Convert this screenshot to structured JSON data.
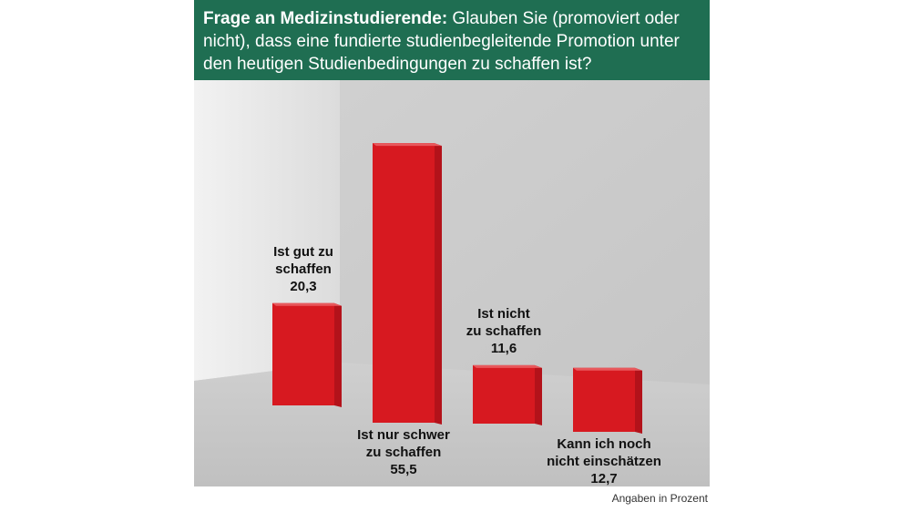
{
  "header": {
    "bold": "Frage an Medizinstudierende:",
    "text": " Glauben Sie (promoviert oder nicht), dass eine fundierte studienbegleitende Promotion unter den heutigen Studienbedingungen zu schaffen ist?"
  },
  "footnote": "Angaben in Prozent",
  "colors": {
    "header": "#1f6e52",
    "bar": "#d71920",
    "bar_side": "#b3121a",
    "bar_top": "#e8585c"
  },
  "chart_data": {
    "type": "bar",
    "title": "Frage an Medizinstudierende: Glauben Sie (promoviert oder nicht), dass eine fundierte studienbegleitende Promotion unter den heutigen Studienbedingungen zu schaffen ist?",
    "unit": "Angaben in Prozent",
    "categories": [
      {
        "line1": "Ist gut zu",
        "line2": "schaffen"
      },
      {
        "line1": "Ist nur schwer",
        "line2": "zu schaffen"
      },
      {
        "line1": "Ist nicht",
        "line2": "zu schaffen"
      },
      {
        "line1": "Kann ich noch",
        "line2": "nicht einschätzen"
      }
    ],
    "values": [
      20.3,
      55.5,
      11.6,
      12.7
    ],
    "value_labels": [
      "20,3",
      "55,5",
      "11,6",
      "12,7"
    ],
    "label_position": [
      "above",
      "below",
      "above",
      "below"
    ]
  }
}
